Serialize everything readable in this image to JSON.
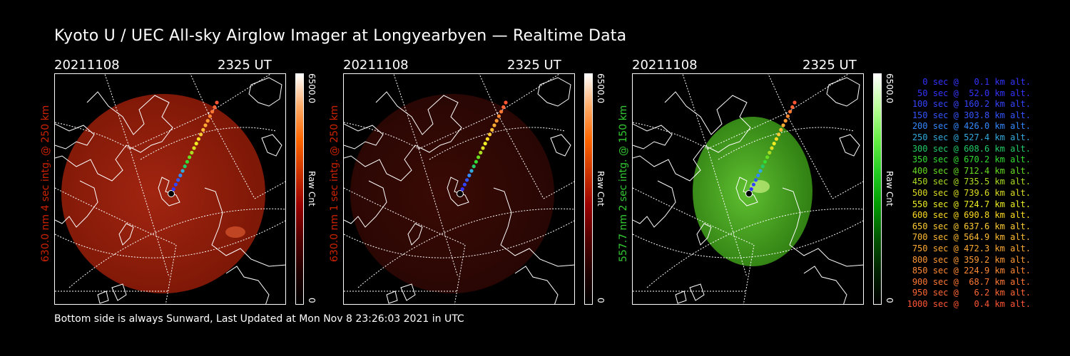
{
  "title": "Kyoto U / UEC All-sky Airglow Imager at Longyearbyen — Realtime Data",
  "panels": [
    {
      "date": "20211108",
      "time": "2325 UT",
      "ylabel": "630.0 nm 4 sec intg. @ 250 km",
      "color": "#cc2200",
      "cb_max": "6500.0",
      "cb_unit": "Raw Cnt",
      "cb_min": "0",
      "cmap": "red"
    },
    {
      "date": "20211108",
      "time": "2325 UT",
      "ylabel": "630.0 nm 1 sec intg. @ 250 km",
      "color": "#cc2200",
      "cb_max": "6500.0",
      "cb_unit": "Raw Cnt",
      "cb_min": "0",
      "cmap": "red"
    },
    {
      "date": "20211108",
      "time": "2325 UT",
      "ylabel": "557.7 nm 2 sec intg. @ 150 km",
      "color": "#33cc33",
      "cb_max": "6500.0",
      "cb_unit": "Raw Cnt",
      "cb_min": "0",
      "cmap": "green"
    }
  ],
  "legend": [
    {
      "text": "0 sec @   0.1 km alt.",
      "color": "#3333ff"
    },
    {
      "text": "50 sec @  52.0 km alt.",
      "color": "#3333ff"
    },
    {
      "text": "100 sec @ 160.2 km alt.",
      "color": "#3344ff"
    },
    {
      "text": "150 sec @ 303.8 km alt.",
      "color": "#3355ff"
    },
    {
      "text": "200 sec @ 426.0 km alt.",
      "color": "#3388ff"
    },
    {
      "text": "250 sec @ 527.4 km alt.",
      "color": "#33aadd"
    },
    {
      "text": "300 sec @ 608.6 km alt.",
      "color": "#22cc66"
    },
    {
      "text": "350 sec @ 670.2 km alt.",
      "color": "#33dd33"
    },
    {
      "text": "400 sec @ 712.4 km alt.",
      "color": "#66dd22"
    },
    {
      "text": "450 sec @ 735.5 km alt.",
      "color": "#aadd22"
    },
    {
      "text": "500 sec @ 739.6 km alt.",
      "color": "#dddd22"
    },
    {
      "text": "550 sec @ 724.7 km alt.",
      "color": "#eeee22"
    },
    {
      "text": "600 sec @ 690.8 km alt.",
      "color": "#ffdd22"
    },
    {
      "text": "650 sec @ 637.6 km alt.",
      "color": "#ffcc33"
    },
    {
      "text": "700 sec @ 564.9 km alt.",
      "color": "#ffbb33"
    },
    {
      "text": "750 sec @ 472.3 km alt.",
      "color": "#ffaa33"
    },
    {
      "text": "800 sec @ 359.2 km alt.",
      "color": "#ff9933"
    },
    {
      "text": "850 sec @ 224.9 km alt.",
      "color": "#ff8833"
    },
    {
      "text": "900 sec @  68.7 km alt.",
      "color": "#ff7733"
    },
    {
      "text": "950 sec @   6.2 km alt.",
      "color": "#ff6633"
    },
    {
      "text": "1000 sec @   0.4 km alt.",
      "color": "#ff5533"
    }
  ],
  "footer": "Bottom side is always Sunward, Last Updated at Mon Nov  8 23:26:03 2021 in UTC"
}
